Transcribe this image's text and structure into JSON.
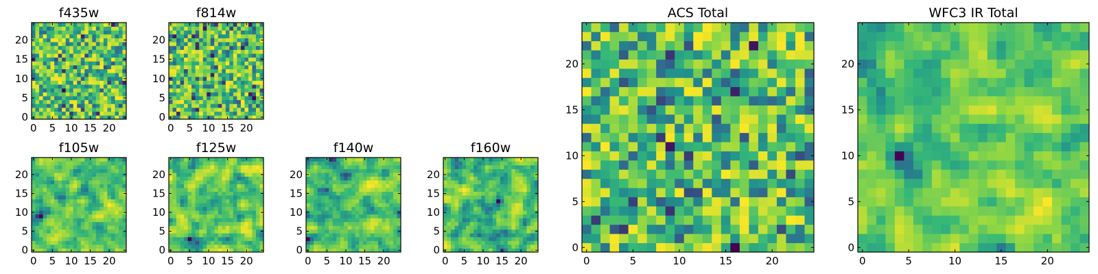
{
  "colormap": [
    "#440154",
    "#31688e",
    "#21908d",
    "#35b779",
    "#90d743",
    "#fde725"
  ],
  "chart_data": [
    {
      "type": "heatmap",
      "title": "f435w",
      "nrows": 25,
      "ncols": 25,
      "texture": "fine",
      "seed": 435,
      "xticks": [
        {
          "value": 0,
          "label": "0"
        },
        {
          "value": 5,
          "label": "5"
        },
        {
          "value": 10,
          "label": "10"
        },
        {
          "value": 15,
          "label": "15"
        },
        {
          "value": 20,
          "label": "20"
        }
      ],
      "yticks": [
        {
          "value": 0,
          "label": "0"
        },
        {
          "value": 5,
          "label": "5"
        },
        {
          "value": 10,
          "label": "10"
        },
        {
          "value": 15,
          "label": "15"
        },
        {
          "value": 20,
          "label": "20"
        }
      ],
      "xlim": [
        0,
        25
      ],
      "ylim": [
        0,
        25
      ]
    },
    {
      "type": "heatmap",
      "title": "f814w",
      "nrows": 25,
      "ncols": 25,
      "texture": "fine",
      "seed": 814,
      "xticks": [
        {
          "value": 0,
          "label": "0"
        },
        {
          "value": 5,
          "label": "5"
        },
        {
          "value": 10,
          "label": "10"
        },
        {
          "value": 15,
          "label": "15"
        },
        {
          "value": 20,
          "label": "20"
        }
      ],
      "yticks": [
        {
          "value": 0,
          "label": "0"
        },
        {
          "value": 5,
          "label": "5"
        },
        {
          "value": 10,
          "label": "10"
        },
        {
          "value": 15,
          "label": "15"
        },
        {
          "value": 20,
          "label": "20"
        }
      ],
      "xlim": [
        0,
        25
      ],
      "ylim": [
        0,
        25
      ]
    },
    {
      "type": "heatmap",
      "title": "f105w",
      "nrows": 25,
      "ncols": 25,
      "texture": "smooth",
      "seed": 105,
      "xticks": [
        {
          "value": 0,
          "label": "0"
        },
        {
          "value": 5,
          "label": "5"
        },
        {
          "value": 10,
          "label": "10"
        },
        {
          "value": 15,
          "label": "15"
        },
        {
          "value": 20,
          "label": "20"
        }
      ],
      "yticks": [
        {
          "value": 0,
          "label": "0"
        },
        {
          "value": 5,
          "label": "5"
        },
        {
          "value": 10,
          "label": "10"
        },
        {
          "value": 15,
          "label": "15"
        },
        {
          "value": 20,
          "label": "20"
        }
      ],
      "xlim": [
        0,
        25
      ],
      "ylim": [
        0,
        25
      ]
    },
    {
      "type": "heatmap",
      "title": "f125w",
      "nrows": 25,
      "ncols": 25,
      "texture": "smooth",
      "seed": 125,
      "xticks": [
        {
          "value": 0,
          "label": "0"
        },
        {
          "value": 5,
          "label": "5"
        },
        {
          "value": 10,
          "label": "10"
        },
        {
          "value": 15,
          "label": "15"
        },
        {
          "value": 20,
          "label": "20"
        }
      ],
      "yticks": [
        {
          "value": 0,
          "label": "0"
        },
        {
          "value": 5,
          "label": "5"
        },
        {
          "value": 10,
          "label": "10"
        },
        {
          "value": 15,
          "label": "15"
        },
        {
          "value": 20,
          "label": "20"
        }
      ],
      "xlim": [
        0,
        25
      ],
      "ylim": [
        0,
        25
      ]
    },
    {
      "type": "heatmap",
      "title": "f140w",
      "nrows": 25,
      "ncols": 25,
      "texture": "smooth",
      "seed": 140,
      "xticks": [
        {
          "value": 0,
          "label": "0"
        },
        {
          "value": 5,
          "label": "5"
        },
        {
          "value": 10,
          "label": "10"
        },
        {
          "value": 15,
          "label": "15"
        },
        {
          "value": 20,
          "label": "20"
        }
      ],
      "yticks": [
        {
          "value": 0,
          "label": "0"
        },
        {
          "value": 5,
          "label": "5"
        },
        {
          "value": 10,
          "label": "10"
        },
        {
          "value": 15,
          "label": "15"
        },
        {
          "value": 20,
          "label": "20"
        }
      ],
      "xlim": [
        0,
        25
      ],
      "ylim": [
        0,
        25
      ]
    },
    {
      "type": "heatmap",
      "title": "f160w",
      "nrows": 25,
      "ncols": 25,
      "texture": "smooth",
      "seed": 160,
      "xticks": [
        {
          "value": 0,
          "label": "0"
        },
        {
          "value": 5,
          "label": "5"
        },
        {
          "value": 10,
          "label": "10"
        },
        {
          "value": 15,
          "label": "15"
        },
        {
          "value": 20,
          "label": "20"
        }
      ],
      "yticks": [
        {
          "value": 0,
          "label": "0"
        },
        {
          "value": 5,
          "label": "5"
        },
        {
          "value": 10,
          "label": "10"
        },
        {
          "value": 15,
          "label": "15"
        },
        {
          "value": 20,
          "label": "20"
        }
      ],
      "xlim": [
        0,
        25
      ],
      "ylim": [
        0,
        25
      ]
    },
    {
      "type": "heatmap",
      "title": "ACS Total",
      "nrows": 25,
      "ncols": 25,
      "texture": "fine",
      "seed": 4357,
      "xticks": [
        {
          "value": 0,
          "label": "0"
        },
        {
          "value": 5,
          "label": "5"
        },
        {
          "value": 10,
          "label": "10"
        },
        {
          "value": 15,
          "label": "15"
        },
        {
          "value": 20,
          "label": "20"
        }
      ],
      "yticks": [
        {
          "value": 0,
          "label": "0"
        },
        {
          "value": 5,
          "label": "5"
        },
        {
          "value": 10,
          "label": "10"
        },
        {
          "value": 15,
          "label": "15"
        },
        {
          "value": 20,
          "label": "20"
        }
      ],
      "xlim": [
        0,
        25
      ],
      "ylim": [
        0,
        25
      ]
    },
    {
      "type": "heatmap",
      "title": "WFC3 IR Total",
      "nrows": 25,
      "ncols": 25,
      "texture": "smooth",
      "seed": 3123,
      "xticks": [
        {
          "value": 0,
          "label": "0"
        },
        {
          "value": 5,
          "label": "5"
        },
        {
          "value": 10,
          "label": "10"
        },
        {
          "value": 15,
          "label": "15"
        },
        {
          "value": 20,
          "label": "20"
        }
      ],
      "yticks": [
        {
          "value": 0,
          "label": "0"
        },
        {
          "value": 5,
          "label": "5"
        },
        {
          "value": 10,
          "label": "10"
        },
        {
          "value": 15,
          "label": "15"
        },
        {
          "value": 20,
          "label": "20"
        }
      ],
      "xlim": [
        0,
        25
      ],
      "ylim": [
        0,
        25
      ]
    }
  ]
}
